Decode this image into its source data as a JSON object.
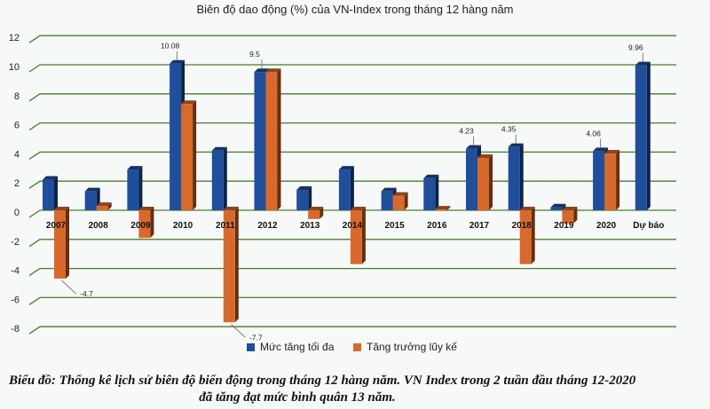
{
  "chart_data": {
    "type": "bar",
    "title": "Biên độ dao động (%) của VN-Index trong tháng 12 hàng năm",
    "categories": [
      "2007",
      "2008",
      "2009",
      "2010",
      "2011",
      "2012",
      "2013",
      "2014",
      "2015",
      "2016",
      "2017",
      "2018",
      "2019",
      "2020",
      "Dự báo"
    ],
    "series": [
      {
        "name": "Mức tăng tối đa",
        "color": "#1f4e9c",
        "values": [
          2.1,
          1.3,
          2.8,
          10.08,
          4.1,
          9.5,
          1.4,
          2.8,
          1.3,
          2.2,
          4.23,
          4.35,
          0.2,
          4.06,
          9.96
        ]
      },
      {
        "name": "Tăng trưởng lũy kế",
        "color": "#d9692a",
        "values": [
          -4.7,
          0.3,
          -1.9,
          7.3,
          -7.7,
          9.5,
          -0.6,
          -3.7,
          1.0,
          0.05,
          3.6,
          -3.7,
          -0.9,
          3.9,
          null
        ]
      }
    ],
    "data_labels": [
      {
        "series": 0,
        "index": 3,
        "text": "10.08"
      },
      {
        "series": 0,
        "index": 5,
        "text": "9.5"
      },
      {
        "series": 0,
        "index": 10,
        "text": "4.23"
      },
      {
        "series": 0,
        "index": 11,
        "text": "4.35"
      },
      {
        "series": 0,
        "index": 13,
        "text": "4.06"
      },
      {
        "series": 0,
        "index": 14,
        "text": "9.96"
      },
      {
        "series": 1,
        "index": 0,
        "text": "-4.7"
      },
      {
        "series": 1,
        "index": 4,
        "text": "-7.7"
      }
    ],
    "yticks": [
      "12",
      "10",
      "8",
      "6",
      "4",
      "2",
      "0",
      "-2",
      "-4",
      "-6",
      "-8"
    ],
    "ylim": [
      -8,
      12
    ],
    "grid": true,
    "gridline_color": "#4a7d2a",
    "legend_position": "bottom",
    "xlabel": "",
    "ylabel": ""
  },
  "caption": {
    "line1": "Biểu đồ: Thống kê lịch sử biên độ biến động trong tháng 12 hàng năm. VN Index trong 2 tuần đầu tháng 12-2020",
    "line2": "đã tăng đạt mức bình quân 13 năm."
  }
}
